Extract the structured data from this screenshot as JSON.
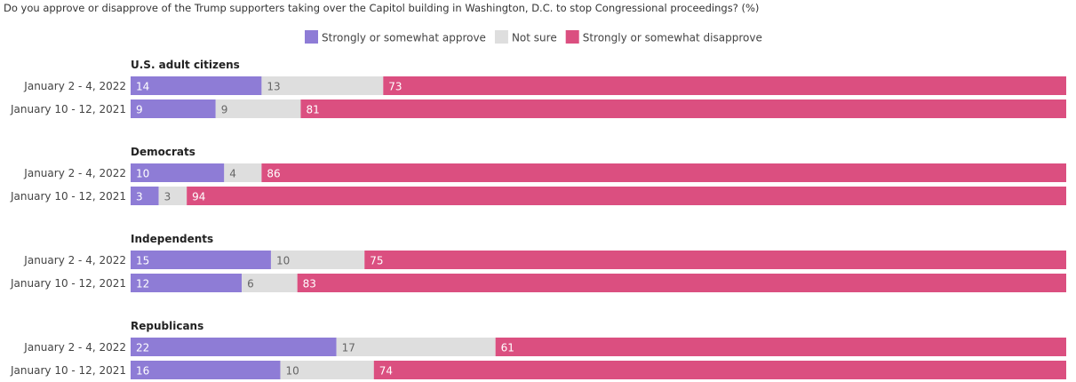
{
  "chart_data": {
    "type": "bar",
    "orientation": "horizontal",
    "stacked": true,
    "title": "Do you approve or disapprove of the Trump supporters taking over the Capitol building in Washington, D.C. to stop Congressional proceedings? (%)",
    "legend": {
      "placement": "top-center",
      "items": [
        {
          "name": "Strongly or somewhat approve",
          "color": "#8e7cd6"
        },
        {
          "name": "Not sure",
          "color": "#dedede"
        },
        {
          "name": "Strongly or somewhat disapprove",
          "color": "#db4f80"
        }
      ]
    },
    "series": [
      {
        "name": "Strongly or somewhat approve",
        "color": "#8e7cd6",
        "label_color": "#ffffff"
      },
      {
        "name": "Not sure",
        "color": "#dedede",
        "label_color": "#666666"
      },
      {
        "name": "Strongly or somewhat disapprove",
        "color": "#db4f80",
        "label_color": "#ffffff"
      }
    ],
    "groups": [
      {
        "name": "U.S. adult citizens",
        "rows": [
          {
            "label": "January 2 - 4, 2022",
            "values": [
              14,
              13,
              73
            ]
          },
          {
            "label": "January 10 - 12, 2021",
            "values": [
              9,
              9,
              81
            ]
          }
        ]
      },
      {
        "name": "Democrats",
        "rows": [
          {
            "label": "January 2 - 4, 2022",
            "values": [
              10,
              4,
              86
            ]
          },
          {
            "label": "January 10 - 12, 2021",
            "values": [
              3,
              3,
              94
            ]
          }
        ]
      },
      {
        "name": "Independents",
        "rows": [
          {
            "label": "January 2 - 4, 2022",
            "values": [
              15,
              10,
              75
            ]
          },
          {
            "label": "January 10 - 12, 2021",
            "values": [
              12,
              6,
              83
            ]
          }
        ]
      },
      {
        "name": "Republicans",
        "rows": [
          {
            "label": "January 2 - 4, 2022",
            "values": [
              22,
              17,
              61
            ]
          },
          {
            "label": "January 10 - 12, 2021",
            "values": [
              16,
              10,
              74
            ]
          }
        ]
      }
    ],
    "xlim": [
      0,
      100
    ],
    "grid": false
  }
}
